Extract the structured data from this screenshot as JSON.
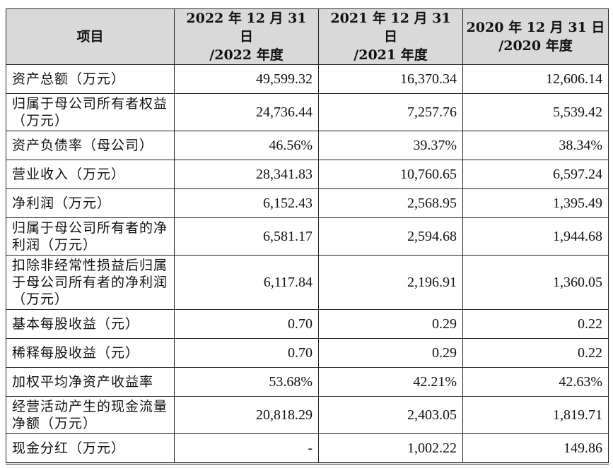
{
  "table": {
    "headers": [
      {
        "lines": [
          "项目"
        ]
      },
      {
        "lines": [
          "2022 年 12 月 31 日",
          "/2022 年度"
        ]
      },
      {
        "lines": [
          "2021 年 12 月 31 日",
          "/2021 年度"
        ]
      },
      {
        "lines": [
          "2020 年 12 月 31 日",
          "/2020 年度"
        ]
      }
    ],
    "rows": [
      {
        "label": "资产总额（万元）",
        "values": [
          "49,599.32",
          "16,370.34",
          "12,606.14"
        ]
      },
      {
        "label": "归属于母公司所有者权益（万元）",
        "values": [
          "24,736.44",
          "7,257.76",
          "5,539.42"
        ]
      },
      {
        "label": "资产负债率（母公司）",
        "values": [
          "46.56%",
          "39.37%",
          "38.34%"
        ]
      },
      {
        "label": "营业收入（万元）",
        "values": [
          "28,341.83",
          "10,760.65",
          "6,597.24"
        ]
      },
      {
        "label": "净利润（万元）",
        "values": [
          "6,152.43",
          "2,568.95",
          "1,395.49"
        ]
      },
      {
        "label": "归属于母公司所有者的净利润（万元）",
        "values": [
          "6,581.17",
          "2,594.68",
          "1,944.68"
        ]
      },
      {
        "label": "扣除非经常性损益后归属于母公司所有者的净利润（万元）",
        "values": [
          "6,117.84",
          "2,196.91",
          "1,360.05"
        ]
      },
      {
        "label": "基本每股收益（元）",
        "values": [
          "0.70",
          "0.29",
          "0.22"
        ]
      },
      {
        "label": "稀释每股收益（元）",
        "values": [
          "0.70",
          "0.29",
          "0.22"
        ]
      },
      {
        "label": "加权平均净资产收益率",
        "values": [
          "53.68%",
          "42.21%",
          "42.63%"
        ]
      },
      {
        "label": "经营活动产生的现金流量净额（万元）",
        "values": [
          "20,818.29",
          "2,403.05",
          "1,819.71"
        ]
      },
      {
        "label": "现金分红（万元）",
        "values": [
          "-",
          "1,002.22",
          "149.86"
        ]
      }
    ]
  }
}
